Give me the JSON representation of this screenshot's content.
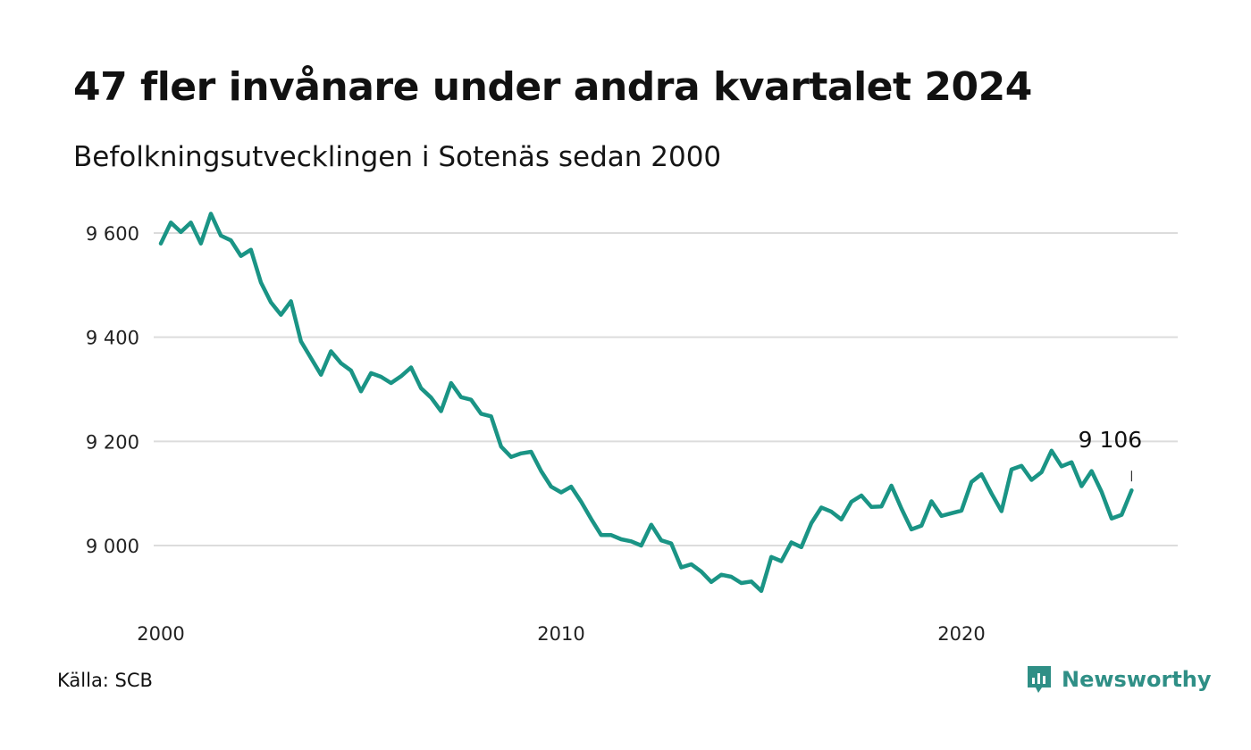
{
  "title": "47 fler invånare under andra kvartalet 2024",
  "subtitle": "Befolkningsutvecklingen i Sotenäs sedan 2000",
  "source": "Källa: SCB",
  "brand": {
    "name": "Newsworthy",
    "icon": "newsworthy-logo-icon"
  },
  "colors": {
    "line": "#1a9485",
    "grid": "#dcdcdc",
    "brand": "#2f8f86"
  },
  "chart_data": {
    "type": "line",
    "title": "47 fler invånare under andra kvartalet 2024",
    "xlabel": "",
    "ylabel": "",
    "xlim": [
      2000,
      2024.5
    ],
    "ylim": [
      8900,
      9650
    ],
    "grid": true,
    "y_ticks": [
      9000,
      9200,
      9400,
      9600
    ],
    "y_tick_labels": [
      "9 000",
      "9 200",
      "9 400",
      "9 600"
    ],
    "x_ticks": [
      2000,
      2010,
      2020
    ],
    "x_tick_labels": [
      "2000",
      "2010",
      "2020"
    ],
    "end_label": "9 106",
    "series": [
      {
        "x": [
          2000.0,
          2000.25,
          2000.5,
          2000.75,
          2001.0,
          2001.25,
          2001.5,
          2001.75,
          2002.0,
          2002.25,
          2002.5,
          2002.75,
          2003.0,
          2003.25,
          2003.5,
          2003.75,
          2004.0,
          2004.25,
          2004.5,
          2004.75,
          2005.0,
          2005.25,
          2005.5,
          2005.75,
          2006.0,
          2006.25,
          2006.5,
          2006.75,
          2007.0,
          2007.25,
          2007.5,
          2007.75,
          2008.0,
          2008.25,
          2008.5,
          2008.75,
          2009.0,
          2009.25,
          2009.5,
          2009.75,
          2010.0,
          2010.25,
          2010.5,
          2010.75,
          2011.0,
          2011.25,
          2011.5,
          2011.75,
          2012.0,
          2012.25,
          2012.5,
          2012.75,
          2013.0,
          2013.25,
          2013.5,
          2013.75,
          2014.0,
          2014.25,
          2014.5,
          2014.75,
          2015.0,
          2015.25,
          2015.5,
          2015.75,
          2016.0,
          2016.25,
          2016.5,
          2016.75,
          2017.0,
          2017.25,
          2017.5,
          2017.75,
          2018.0,
          2018.25,
          2018.5,
          2018.75,
          2019.0,
          2019.25,
          2019.5,
          2019.75,
          2020.0,
          2020.25,
          2020.5,
          2020.75,
          2021.0,
          2021.25,
          2021.5,
          2021.75,
          2022.0,
          2022.25,
          2022.5,
          2022.75,
          2023.0,
          2023.25,
          2023.5,
          2023.75,
          2024.0,
          2024.25
        ],
        "values": [
          9580,
          9620,
          9602,
          9620,
          9580,
          9637,
          9595,
          9586,
          9556,
          9568,
          9505,
          9467,
          9443,
          9469,
          9392,
          9360,
          9328,
          9373,
          9350,
          9336,
          9296,
          9331,
          9324,
          9312,
          9325,
          9342,
          9302,
          9284,
          9258,
          9312,
          9285,
          9280,
          9253,
          9248,
          9190,
          9170,
          9177,
          9180,
          9143,
          9113,
          9102,
          9113,
          9084,
          9051,
          9020,
          9020,
          9012,
          9008,
          9000,
          9040,
          9010,
          9004,
          8958,
          8964,
          8950,
          8930,
          8944,
          8940,
          8928,
          8931,
          8913,
          8978,
          8970,
          9006,
          8997,
          9043,
          9073,
          9065,
          9050,
          9084,
          9096,
          9074,
          9075,
          9115,
          9071,
          9031,
          9038,
          9085,
          9057,
          9062,
          9067,
          9122,
          9137,
          9100,
          9066,
          9146,
          9153,
          9126,
          9141,
          9182,
          9152,
          9160,
          9114,
          9143,
          9103,
          9052,
          9059,
          9106
        ]
      }
    ]
  }
}
